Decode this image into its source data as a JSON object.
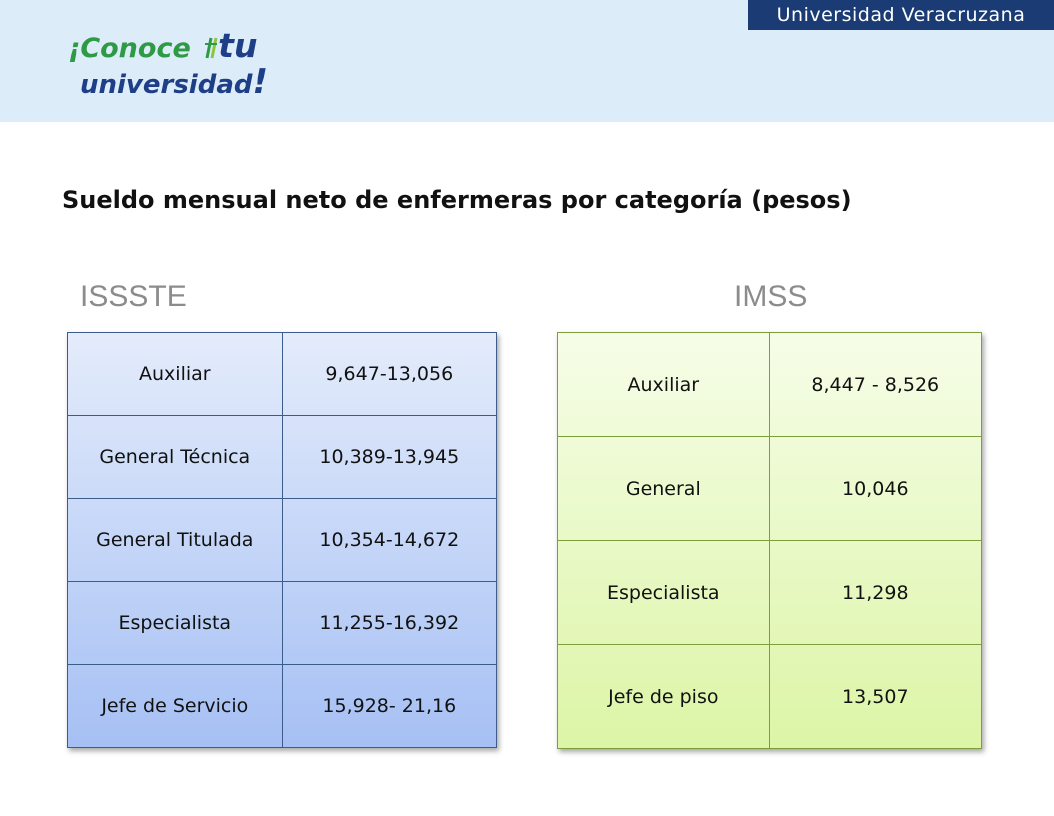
{
  "header": {
    "institution": "Universidad Veracruzana",
    "logo_line1_prefix": "¡Conoce",
    "logo_line1_tu": "tu",
    "logo_line2": "universidad",
    "logo_line2_end": "!"
  },
  "slide_title": "Sueldo mensual neto de enfermeras por categoría (pesos)",
  "issste": {
    "label": "ISSSTE",
    "rows": [
      {
        "categoria": "Auxiliar",
        "sueldo": "9,647-13,056"
      },
      {
        "categoria": "General Técnica",
        "sueldo": "10,389-13,945"
      },
      {
        "categoria": "General Titulada",
        "sueldo": "10,354-14,672"
      },
      {
        "categoria": "Especialista",
        "sueldo": "11,255-16,392"
      },
      {
        "categoria": "Jefe de Servicio",
        "sueldo": "15,928- 21,16"
      }
    ]
  },
  "imss": {
    "label": "IMSS",
    "rows": [
      {
        "categoria": "Auxiliar",
        "sueldo": "8,447 - 8,526"
      },
      {
        "categoria": "General",
        "sueldo": "10,046"
      },
      {
        "categoria": "Especialista",
        "sueldo": "11,298"
      },
      {
        "categoria": "Jefe de piso",
        "sueldo": "13,507"
      }
    ]
  },
  "colors": {
    "issste_gradient_start": "#e4ecfb",
    "issste_gradient_end": "#a6c0f4",
    "imss_gradient_start": "#f6fde8",
    "imss_gradient_end": "#dcf5a6",
    "header_bg": "#dcecf8",
    "uv_bar": "#1a3b73"
  }
}
